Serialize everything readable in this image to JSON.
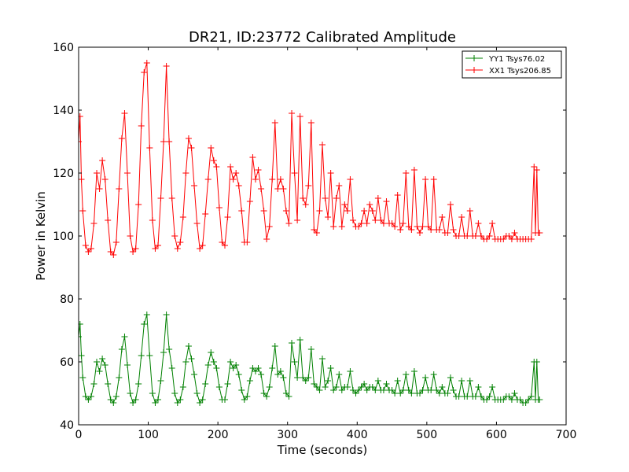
{
  "chart_data": {
    "type": "line",
    "title": "DR21, ID:23772 Calibrated Amplitude",
    "xlabel": "Time (seconds)",
    "ylabel": "Power in Kelvin",
    "xlim": [
      0,
      700
    ],
    "ylim": [
      40,
      160
    ],
    "xticks": [
      0,
      100,
      200,
      300,
      400,
      500,
      600,
      700
    ],
    "yticks": [
      40,
      60,
      80,
      100,
      120,
      140,
      160
    ],
    "grid": false,
    "legend_position": "top-right",
    "marker": "+",
    "series": [
      {
        "name": "YY1 Tsys76.02",
        "color": "#008000",
        "x": [
          0,
          2,
          4,
          6,
          10,
          14,
          18,
          22,
          26,
          30,
          34,
          38,
          42,
          46,
          50,
          54,
          58,
          62,
          66,
          70,
          74,
          78,
          82,
          86,
          90,
          94,
          98,
          102,
          106,
          110,
          114,
          118,
          122,
          126,
          130,
          134,
          138,
          142,
          146,
          150,
          154,
          158,
          162,
          166,
          170,
          174,
          178,
          182,
          186,
          190,
          194,
          198,
          202,
          206,
          210,
          214,
          218,
          222,
          226,
          230,
          234,
          238,
          242,
          246,
          250,
          254,
          258,
          262,
          266,
          270,
          274,
          278,
          282,
          286,
          290,
          294,
          298,
          302,
          306,
          310,
          314,
          318,
          322,
          326,
          330,
          334,
          338,
          342,
          346,
          350,
          354,
          358,
          362,
          366,
          370,
          374,
          378,
          382,
          386,
          390,
          394,
          398,
          402,
          406,
          410,
          414,
          418,
          422,
          426,
          430,
          434,
          438,
          442,
          446,
          450,
          454,
          458,
          462,
          466,
          470,
          474,
          478,
          482,
          486,
          490,
          494,
          498,
          502,
          506,
          510,
          514,
          518,
          522,
          526,
          530,
          534,
          538,
          542,
          546,
          550,
          554,
          558,
          562,
          566,
          570,
          574,
          578,
          582,
          586,
          590,
          594,
          598,
          602,
          606,
          610,
          614,
          618,
          622,
          626,
          630,
          634,
          638,
          642,
          646,
          650,
          654,
          656,
          658,
          660,
          662
        ],
        "y": [
          68,
          72,
          62,
          55,
          49,
          48,
          49,
          53,
          60,
          57,
          61,
          59,
          53,
          48,
          47,
          49,
          55,
          64,
          68,
          59,
          50,
          47,
          48,
          53,
          62,
          72,
          75,
          62,
          50,
          47,
          48,
          54,
          63,
          75,
          64,
          58,
          50,
          47,
          48,
          52,
          60,
          65,
          61,
          56,
          50,
          47,
          48,
          53,
          59,
          63,
          60,
          58,
          52,
          48,
          48,
          53,
          60,
          58,
          59,
          56,
          51,
          48,
          49,
          54,
          58,
          57,
          58,
          56,
          50,
          49,
          52,
          58,
          65,
          56,
          57,
          55,
          50,
          49,
          66,
          60,
          55,
          67,
          55,
          54,
          55,
          64,
          53,
          52,
          51,
          61,
          52,
          54,
          58,
          51,
          52,
          56,
          51,
          52,
          52,
          57,
          51,
          50,
          51,
          52,
          53,
          51,
          52,
          52,
          51,
          54,
          51,
          51,
          53,
          51,
          51,
          50,
          54,
          50,
          51,
          56,
          51,
          50,
          57,
          50,
          50,
          51,
          55,
          51,
          51,
          56,
          51,
          50,
          52,
          50,
          50,
          55,
          51,
          49,
          49,
          54,
          49,
          49,
          54,
          49,
          49,
          52,
          49,
          48,
          48,
          49,
          52,
          48,
          48,
          48,
          48,
          49,
          49,
          48,
          50,
          48,
          48,
          47,
          47,
          48,
          49,
          60,
          48,
          60,
          48,
          48
        ]
      },
      {
        "name": "XX1 Tsys206.85",
        "color": "#ff0000",
        "x": [
          0,
          2,
          4,
          6,
          10,
          14,
          18,
          22,
          26,
          30,
          34,
          38,
          42,
          46,
          50,
          54,
          58,
          62,
          66,
          70,
          74,
          78,
          82,
          86,
          90,
          94,
          98,
          102,
          106,
          110,
          114,
          118,
          122,
          126,
          130,
          134,
          138,
          142,
          146,
          150,
          154,
          158,
          162,
          166,
          170,
          174,
          178,
          182,
          186,
          190,
          194,
          198,
          202,
          206,
          210,
          214,
          218,
          222,
          226,
          230,
          234,
          238,
          242,
          246,
          250,
          254,
          258,
          262,
          266,
          270,
          274,
          278,
          282,
          286,
          290,
          294,
          298,
          302,
          306,
          310,
          314,
          318,
          322,
          326,
          330,
          334,
          338,
          342,
          346,
          350,
          354,
          358,
          362,
          366,
          370,
          374,
          378,
          382,
          386,
          390,
          394,
          398,
          402,
          406,
          410,
          414,
          418,
          422,
          426,
          430,
          434,
          438,
          442,
          446,
          450,
          454,
          458,
          462,
          466,
          470,
          474,
          478,
          482,
          486,
          490,
          494,
          498,
          502,
          506,
          510,
          514,
          518,
          522,
          526,
          530,
          534,
          538,
          542,
          546,
          550,
          554,
          558,
          562,
          566,
          570,
          574,
          578,
          582,
          586,
          590,
          594,
          598,
          602,
          606,
          610,
          614,
          618,
          622,
          626,
          630,
          634,
          638,
          642,
          646,
          650,
          654,
          656,
          658,
          660,
          662
        ],
        "y": [
          130,
          138,
          118,
          108,
          97,
          95,
          96,
          104,
          120,
          115,
          124,
          118,
          105,
          95,
          94,
          98,
          115,
          131,
          139,
          120,
          100,
          95,
          96,
          110,
          135,
          152,
          155,
          128,
          105,
          96,
          97,
          112,
          130,
          154,
          130,
          112,
          100,
          96,
          98,
          106,
          120,
          131,
          128,
          116,
          104,
          96,
          97,
          107,
          118,
          128,
          124,
          122,
          109,
          98,
          97,
          106,
          122,
          118,
          120,
          116,
          108,
          98,
          98,
          111,
          125,
          118,
          121,
          115,
          108,
          99,
          103,
          118,
          136,
          115,
          118,
          115,
          108,
          104,
          139,
          120,
          105,
          138,
          112,
          110,
          116,
          136,
          102,
          101,
          108,
          129,
          112,
          106,
          120,
          103,
          112,
          116,
          103,
          110,
          108,
          118,
          105,
          103,
          103,
          104,
          108,
          104,
          110,
          108,
          105,
          112,
          105,
          104,
          111,
          104,
          104,
          103,
          113,
          102,
          104,
          120,
          103,
          102,
          121,
          103,
          101,
          103,
          118,
          103,
          102,
          118,
          102,
          102,
          106,
          101,
          101,
          110,
          102,
          100,
          100,
          106,
          100,
          100,
          108,
          100,
          100,
          104,
          100,
          99,
          99,
          100,
          104,
          99,
          99,
          99,
          99,
          100,
          100,
          99,
          101,
          99,
          99,
          99,
          99,
          99,
          99,
          122,
          101,
          121,
          101,
          101
        ]
      }
    ]
  }
}
